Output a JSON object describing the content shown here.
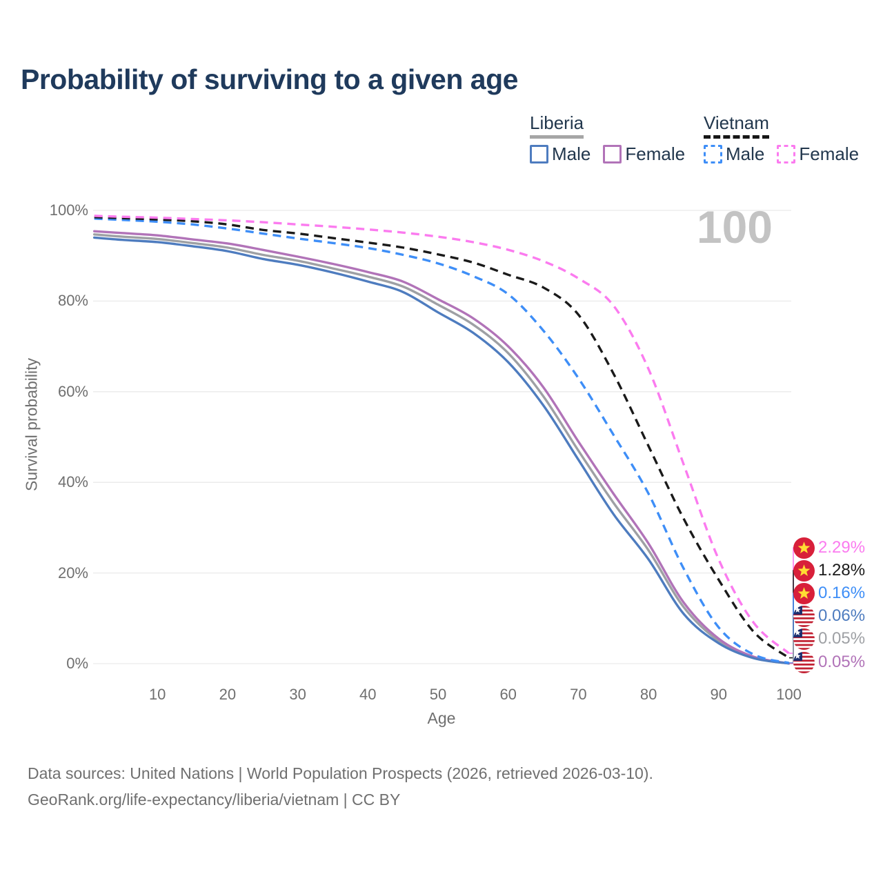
{
  "title": "Probability of surviving to a given age",
  "watermark_age": "100",
  "legend": {
    "liberia": {
      "label": "Liberia",
      "male": "Male",
      "female": "Female"
    },
    "vietnam": {
      "label": "Vietnam",
      "male": "Male",
      "female": "Female"
    }
  },
  "y_axis": {
    "title": "Survival probability",
    "ticks": [
      "100%",
      "80%",
      "60%",
      "40%",
      "20%",
      "0%"
    ],
    "tick_values": [
      100,
      80,
      60,
      40,
      20,
      0
    ]
  },
  "x_axis": {
    "title": "Age",
    "ticks": [
      10,
      20,
      30,
      40,
      50,
      60,
      70,
      80,
      90,
      100
    ]
  },
  "chart_data": {
    "type": "line",
    "title": "Probability of surviving to a given age",
    "xlabel": "Age",
    "ylabel": "Survival probability",
    "x_range": [
      0,
      100
    ],
    "y_range_percent": [
      0,
      100
    ],
    "grid": "horizontal-only",
    "x": [
      1,
      5,
      10,
      15,
      20,
      25,
      30,
      35,
      40,
      45,
      50,
      55,
      60,
      65,
      70,
      75,
      80,
      85,
      90,
      95,
      100
    ],
    "series": [
      {
        "id": "lr_all",
        "country": "Liberia",
        "group": "combined",
        "line": "solid",
        "color": "#9EA0A4",
        "values": [
          94.7,
          94.2,
          93.7,
          92.8,
          91.8,
          90.2,
          88.9,
          87.2,
          85.4,
          83.2,
          79.2,
          74.8,
          68.5,
          59.0,
          47.0,
          35.5,
          25.0,
          12.5,
          5.0,
          1.3,
          0.05
        ]
      },
      {
        "id": "lr_female",
        "country": "Liberia",
        "group": "female",
        "line": "solid",
        "color": "#B173B8",
        "values": [
          95.4,
          95.0,
          94.5,
          93.6,
          92.7,
          91.3,
          89.8,
          88.2,
          86.4,
          84.3,
          80.4,
          76.2,
          70.0,
          61.0,
          49.0,
          37.5,
          26.5,
          13.5,
          5.5,
          1.5,
          0.05
        ]
      },
      {
        "id": "lr_male",
        "country": "Liberia",
        "group": "male",
        "line": "solid",
        "color": "#4E7CBF",
        "values": [
          94.0,
          93.5,
          93.0,
          92.1,
          91.0,
          89.3,
          88.0,
          86.3,
          84.3,
          82.0,
          77.5,
          73.0,
          66.5,
          57.0,
          45.0,
          33.0,
          23.0,
          11.0,
          4.5,
          1.2,
          0.06
        ]
      },
      {
        "id": "vn_male",
        "country": "Vietnam",
        "group": "male",
        "line": "dashed",
        "color": "#3E8EF7",
        "values": [
          98.2,
          97.9,
          97.5,
          96.9,
          96.0,
          94.9,
          93.8,
          92.8,
          91.7,
          90.2,
          88.3,
          85.5,
          81.5,
          73.5,
          63.0,
          50.5,
          37.5,
          21.0,
          8.0,
          2.0,
          0.16
        ]
      },
      {
        "id": "vn_all",
        "country": "Vietnam",
        "group": "combined",
        "line": "dashed",
        "color": "#1A1A1A",
        "values": [
          98.5,
          98.3,
          98.0,
          97.6,
          96.9,
          95.7,
          94.9,
          93.9,
          92.9,
          91.8,
          90.3,
          88.5,
          85.8,
          83.0,
          77.0,
          64.0,
          48.0,
          32.0,
          18.5,
          7.0,
          1.28
        ]
      },
      {
        "id": "vn_female",
        "country": "Vietnam",
        "group": "female",
        "line": "dashed",
        "color": "#FB7BEF",
        "values": [
          98.8,
          98.6,
          98.4,
          98.1,
          97.8,
          97.4,
          96.9,
          96.4,
          95.8,
          95.1,
          94.2,
          93.0,
          91.3,
          88.8,
          85.0,
          79.0,
          65.0,
          44.0,
          23.0,
          9.0,
          2.29
        ]
      }
    ]
  },
  "end_labels": [
    {
      "series": "vn_female",
      "text": "2.29%",
      "flag": "vietnam",
      "color": "#FB7BEF"
    },
    {
      "series": "vn_all",
      "text": "1.28%",
      "flag": "vietnam",
      "color": "#1A1A1A"
    },
    {
      "series": "vn_male",
      "text": "0.16%",
      "flag": "vietnam",
      "color": "#3E8EF7"
    },
    {
      "series": "lr_male",
      "text": "0.06%",
      "flag": "liberia",
      "color": "#4E7CBF"
    },
    {
      "series": "lr_all",
      "text": "0.05%",
      "flag": "liberia",
      "color": "#9EA0A4"
    },
    {
      "series": "lr_female",
      "text": "0.05%",
      "flag": "liberia",
      "color": "#B173B8"
    }
  ],
  "footer": {
    "line1": "Data sources: United Nations | World Population Prospects (2026, retrieved 2026-03-10).",
    "line2": "GeoRank.org/life-expectancy/liberia/vietnam | CC BY"
  },
  "colors": {
    "lr_male": "#4E7CBF",
    "lr_all": "#9EA0A4",
    "lr_female": "#B173B8",
    "vn_male": "#3E8EF7",
    "vn_all": "#1A1A1A",
    "vn_female": "#FB7BEF",
    "grid": "#E9E9E9",
    "title": "#1F3A5C",
    "axis_text": "#6F6F6F",
    "watermark": "#C3C3C3",
    "legend_underline_liberia": "#A6A6A6",
    "legend_underline_vietnam": "#161616",
    "flag_vietnam_red": "#D8203A",
    "flag_star_yellow": "#FFDE33",
    "flag_liberia_red": "#C22133",
    "flag_liberia_blue": "#1B2E6E"
  }
}
